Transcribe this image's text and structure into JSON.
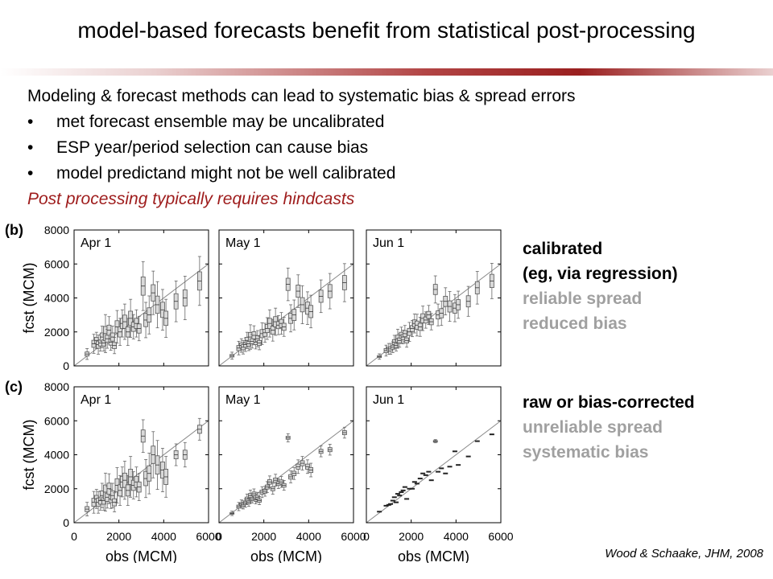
{
  "slide": {
    "title": "model-based  forecasts benefit from statistical post-processing",
    "intro": "Modeling & forecast methods can lead to systematic bias & spread errors",
    "bullets": [
      "met forecast ensemble may be uncalibrated",
      "ESP year/period selection can cause bias",
      "model predictand might not be well calibrated"
    ],
    "highlight": "Post processing typically requires hindcasts",
    "calibrated": {
      "title": "calibrated",
      "subtitle": "(eg, via regression)",
      "note1": "reliable spread",
      "note2": "reduced bias"
    },
    "raw": {
      "title": "raw or bias-corrected",
      "note1": "unreliable spread",
      "note2": "systematic bias"
    },
    "citation": "Wood & Schaake, JHM, 2008",
    "colors": {
      "accent": "#9e1c1c",
      "muted_text": "#a0a0a0",
      "box_fill": "#d9d9d9"
    }
  },
  "chart_data": {
    "type": "scatter",
    "row_labels": [
      "(b)",
      "(c)"
    ],
    "panel_titles": [
      "Apr 1",
      "May 1",
      "Jun 1"
    ],
    "xlabel": "obs (MCM)",
    "ylabel": "fcst (MCM)",
    "xlim": [
      0,
      6000
    ],
    "ylim": [
      0,
      8000
    ],
    "x_ticks": [
      0,
      2000,
      4000,
      6000
    ],
    "y_ticks": [
      0,
      2000,
      4000,
      6000,
      8000
    ],
    "reference_line": "1:1",
    "obs": [
      580,
      880,
      1000,
      1080,
      1180,
      1250,
      1330,
      1400,
      1480,
      1560,
      1640,
      1720,
      1800,
      1920,
      2050,
      2150,
      2260,
      2400,
      2520,
      2650,
      2780,
      2900,
      3080,
      3200,
      3350,
      3530,
      3720,
      3950,
      4100,
      4550,
      4950,
      5600
    ],
    "panels": [
      {
        "row": "(b)",
        "title": "Apr 1",
        "median": [
          700,
          1300,
          1500,
          1250,
          1350,
          1700,
          1350,
          1900,
          1600,
          2100,
          1400,
          1700,
          1200,
          2300,
          2000,
          2500,
          2600,
          2000,
          2800,
          2300,
          2500,
          2200,
          4700,
          2700,
          3000,
          4300,
          3600,
          3300,
          2800,
          3800,
          4000,
          5000
        ],
        "half_spread": [
          200,
          350,
          300,
          350,
          300,
          400,
          300,
          700,
          350,
          500,
          300,
          400,
          300,
          600,
          500,
          500,
          650,
          500,
          700,
          450,
          500,
          450,
          900,
          650,
          700,
          800,
          850,
          750,
          700,
          750,
          800,
          900
        ]
      },
      {
        "row": "(b)",
        "title": "May 1",
        "median": [
          600,
          1050,
          1200,
          1100,
          1250,
          1500,
          1300,
          1700,
          1450,
          1800,
          1400,
          1600,
          1350,
          1900,
          1950,
          2200,
          2500,
          2100,
          2600,
          2400,
          2500,
          2300,
          4800,
          2800,
          3000,
          4400,
          3600,
          3400,
          3200,
          4100,
          4400,
          4900
        ],
        "half_spread": [
          130,
          250,
          250,
          250,
          250,
          300,
          250,
          450,
          250,
          350,
          250,
          300,
          250,
          400,
          350,
          400,
          500,
          400,
          500,
          350,
          400,
          350,
          600,
          500,
          550,
          600,
          700,
          600,
          600,
          600,
          650,
          700
        ]
      },
      {
        "row": "(b)",
        "title": "Jun 1",
        "median": [
          550,
          900,
          1000,
          1000,
          1100,
          1400,
          1200,
          1600,
          1500,
          1800,
          1700,
          1900,
          1500,
          2000,
          2200,
          2500,
          2400,
          2300,
          2800,
          2700,
          3000,
          2600,
          4500,
          3000,
          3100,
          3800,
          3500,
          3400,
          3600,
          3800,
          4600,
          5000
        ],
        "half_spread": [
          100,
          200,
          200,
          200,
          200,
          250,
          200,
          350,
          250,
          300,
          250,
          300,
          250,
          350,
          300,
          350,
          400,
          350,
          450,
          300,
          350,
          300,
          500,
          400,
          450,
          500,
          550,
          500,
          500,
          550,
          600,
          650
        ]
      },
      {
        "row": "(c)",
        "title": "Apr 1",
        "median": [
          800,
          1200,
          1400,
          1200,
          1300,
          1600,
          1300,
          1800,
          1500,
          2000,
          1400,
          1600,
          1200,
          2200,
          1900,
          2400,
          2500,
          1900,
          2700,
          2200,
          2400,
          2100,
          5100,
          2600,
          2900,
          4000,
          3400,
          3100,
          2700,
          4000,
          4000,
          5500
        ],
        "half_spread": [
          250,
          400,
          350,
          400,
          350,
          450,
          350,
          700,
          400,
          550,
          350,
          450,
          350,
          650,
          550,
          550,
          700,
          550,
          750,
          500,
          550,
          500,
          600,
          700,
          750,
          850,
          900,
          800,
          750,
          400,
          450,
          400
        ]
      },
      {
        "row": "(c)",
        "title": "May 1",
        "median": [
          550,
          950,
          1100,
          1050,
          1150,
          1400,
          1200,
          1600,
          1400,
          1700,
          1350,
          1500,
          1300,
          1800,
          1850,
          2100,
          2400,
          2000,
          2500,
          2300,
          2400,
          2200,
          5000,
          2700,
          2900,
          3300,
          3500,
          3300,
          3100,
          4200,
          4300,
          5300
        ],
        "half_spread": [
          80,
          150,
          150,
          150,
          150,
          180,
          150,
          200,
          150,
          180,
          150,
          180,
          150,
          200,
          180,
          200,
          220,
          200,
          220,
          180,
          200,
          180,
          150,
          220,
          220,
          250,
          250,
          250,
          250,
          200,
          200,
          200
        ]
      },
      {
        "row": "(c)",
        "title": "Jun 1",
        "median": [
          650,
          1000,
          1050,
          1100,
          1300,
          1500,
          1200,
          1700,
          1600,
          1800,
          1900,
          2100,
          1400,
          2000,
          2000,
          2400,
          2300,
          2600,
          2900,
          2800,
          3000,
          2500,
          4800,
          3000,
          3200,
          2900,
          3300,
          4200,
          3400,
          3900,
          4800,
          5200
        ],
        "half_spread": [
          30,
          30,
          30,
          30,
          30,
          30,
          30,
          30,
          30,
          30,
          30,
          30,
          30,
          30,
          30,
          30,
          30,
          30,
          30,
          30,
          30,
          30,
          60,
          30,
          30,
          30,
          30,
          30,
          30,
          30,
          30,
          30
        ]
      }
    ]
  }
}
